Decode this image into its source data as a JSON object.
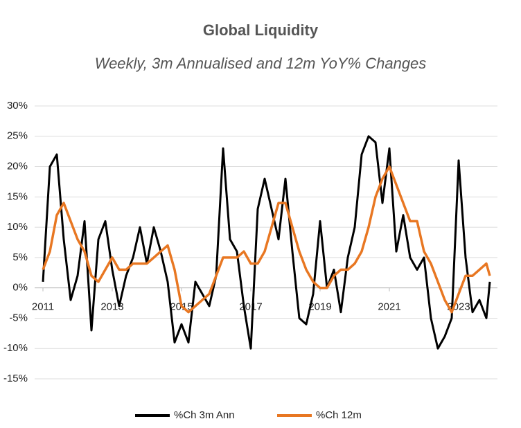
{
  "chart_data": {
    "type": "line",
    "title": "Global Liquidity",
    "subtitle": "Weekly, 3m Annualised and 12m YoY% Changes",
    "x": [
      2011.0,
      2011.2,
      2011.4,
      2011.6,
      2011.8,
      2012.0,
      2012.2,
      2012.4,
      2012.6,
      2012.8,
      2013.0,
      2013.2,
      2013.4,
      2013.6,
      2013.8,
      2014.0,
      2014.2,
      2014.4,
      2014.6,
      2014.8,
      2015.0,
      2015.2,
      2015.4,
      2015.6,
      2015.8,
      2016.0,
      2016.2,
      2016.4,
      2016.6,
      2016.8,
      2017.0,
      2017.2,
      2017.4,
      2017.6,
      2017.8,
      2018.0,
      2018.2,
      2018.4,
      2018.6,
      2018.8,
      2019.0,
      2019.2,
      2019.4,
      2019.6,
      2019.8,
      2020.0,
      2020.2,
      2020.4,
      2020.6,
      2020.8,
      2021.0,
      2021.2,
      2021.4,
      2021.6,
      2021.8,
      2022.0,
      2022.2,
      2022.4,
      2022.6,
      2022.8,
      2023.0,
      2023.2,
      2023.4,
      2023.6,
      2023.8,
      2023.9
    ],
    "series": [
      {
        "name": "%Ch 3m Ann",
        "color": "#000000",
        "values": [
          1,
          20,
          22,
          8,
          -2,
          2,
          11,
          -7,
          8,
          11,
          3,
          -3,
          2,
          5,
          10,
          4,
          10,
          6,
          1,
          -9,
          -6,
          -9,
          1,
          -1,
          -3,
          2,
          23,
          8,
          6,
          -3,
          -10,
          13,
          18,
          13,
          8,
          18,
          6,
          -5,
          -6,
          -1,
          11,
          0,
          3,
          -4,
          5,
          10,
          22,
          25,
          24,
          14,
          23,
          6,
          12,
          5,
          3,
          5,
          -5,
          -10,
          -8,
          -5,
          21,
          5,
          -4,
          -2,
          -5,
          1
        ]
      },
      {
        "name": "%Ch 12m",
        "color": "#e87722",
        "values": [
          3,
          6,
          12,
          14,
          11,
          8,
          6,
          2,
          1,
          3,
          5,
          3,
          3,
          4,
          4,
          4,
          5,
          6,
          7,
          3,
          -3,
          -4,
          -3,
          -2,
          -1,
          2,
          5,
          5,
          5,
          6,
          4,
          4,
          6,
          10,
          14,
          14,
          10,
          6,
          3,
          1,
          0,
          0,
          2,
          3,
          3,
          4,
          6,
          10,
          15,
          18,
          20,
          17,
          14,
          11,
          11,
          6,
          4,
          1,
          -2,
          -4,
          -1,
          2,
          2,
          3,
          4,
          2
        ]
      }
    ],
    "xlim": [
      2011,
      2024.3
    ],
    "xticks": [
      2011,
      2013,
      2015,
      2017,
      2019,
      2021,
      2023
    ],
    "ylim": [
      -15,
      30
    ],
    "yticks": [
      {
        "value": 30,
        "label": "30%"
      },
      {
        "value": 25,
        "label": "25%"
      },
      {
        "value": 20,
        "label": "20%"
      },
      {
        "value": 15,
        "label": "15%"
      },
      {
        "value": 10,
        "label": "10%"
      },
      {
        "value": 5,
        "label": "5%"
      },
      {
        "value": 0,
        "label": "0%"
      },
      {
        "value": -5,
        "label": "-5%"
      },
      {
        "value": -10,
        "label": "-10%"
      },
      {
        "value": -15,
        "label": "-15%"
      }
    ],
    "grid": true,
    "legend": "bottom"
  }
}
